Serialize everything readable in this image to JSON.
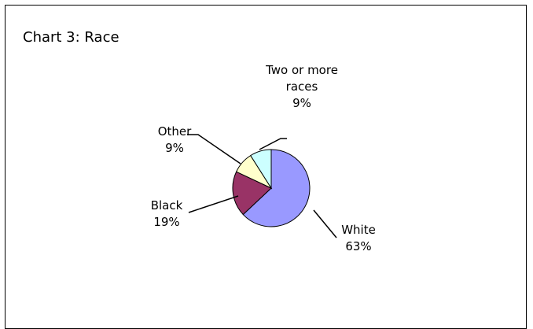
{
  "chart_data": {
    "type": "pie",
    "title": "Chart 3: Race",
    "slices": [
      {
        "name": "White",
        "value_label": "63%",
        "value": 63,
        "color": "#9999FF"
      },
      {
        "name": "Black",
        "value_label": "19%",
        "value": 19,
        "color": "#993366"
      },
      {
        "name": "Other",
        "value_label": "9%",
        "value": 9,
        "color": "#FFFFCC"
      },
      {
        "name": "Two or more races",
        "name_lines": [
          "Two or more",
          "races"
        ],
        "value_label": "9%",
        "value": 9,
        "color": "#CCFFFF"
      }
    ],
    "legend": "none",
    "grid": false
  }
}
